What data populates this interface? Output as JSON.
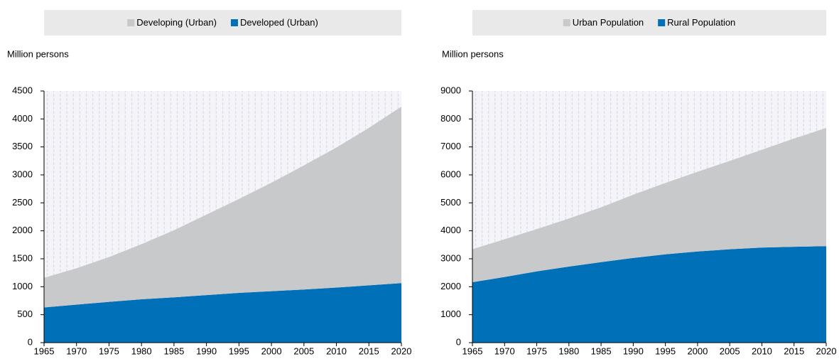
{
  "chart_data": [
    {
      "type": "stacked_area",
      "y_label": "Million persons",
      "x": [
        1965,
        1970,
        1975,
        1980,
        1985,
        1990,
        1995,
        2000,
        2005,
        2010,
        2015,
        2020
      ],
      "series": [
        {
          "name": "Developing (Urban)",
          "color": "#c8c9cb",
          "values": [
            530,
            650,
            800,
            985,
            1200,
            1440,
            1680,
            1940,
            2220,
            2505,
            2815,
            3155
          ]
        },
        {
          "name": "Developed (Urban)",
          "color": "#0070b8",
          "values": [
            630,
            680,
            730,
            775,
            810,
            850,
            890,
            920,
            950,
            985,
            1025,
            1065
          ]
        }
      ],
      "xlim": [
        1965,
        2020
      ],
      "xticks": [
        1965,
        1970,
        1975,
        1980,
        1985,
        1990,
        1995,
        2000,
        2005,
        2010,
        2015,
        2020
      ],
      "ylim": [
        0,
        4500
      ],
      "yticks": [
        0,
        500,
        1000,
        1500,
        2000,
        2500,
        3000,
        3500,
        4000,
        4500
      ],
      "legend": "top"
    },
    {
      "type": "stacked_area",
      "y_label": "Million persons",
      "x": [
        1965,
        1970,
        1975,
        1980,
        1985,
        1990,
        1995,
        2000,
        2005,
        2010,
        2015,
        2020
      ],
      "series": [
        {
          "name": "Urban Population",
          "color": "#c8c9cb",
          "values": [
            1180,
            1350,
            1510,
            1720,
            1960,
            2260,
            2550,
            2850,
            3160,
            3500,
            3870,
            4230
          ]
        },
        {
          "name": "Rural Population",
          "color": "#0070b8",
          "values": [
            2160,
            2350,
            2550,
            2720,
            2880,
            3030,
            3160,
            3260,
            3340,
            3400,
            3430,
            3450
          ]
        }
      ],
      "xlim": [
        1965,
        2020
      ],
      "xticks": [
        1965,
        1970,
        1975,
        1980,
        1985,
        1990,
        1995,
        2000,
        2005,
        2010,
        2015,
        2020
      ],
      "ylim": [
        0,
        9000
      ],
      "yticks": [
        0,
        1000,
        2000,
        3000,
        4000,
        5000,
        6000,
        7000,
        8000,
        9000
      ],
      "legend": "top"
    }
  ]
}
